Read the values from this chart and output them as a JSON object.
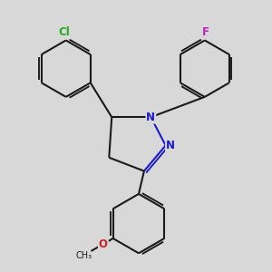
{
  "background_color": "#d8d8d8",
  "bond_color": "#1a1a1a",
  "nitrogen_color": "#1a1acc",
  "chlorine_color": "#22aa22",
  "fluorine_color": "#bb22bb",
  "oxygen_color": "#cc2222",
  "line_width": 1.5,
  "figsize": [
    3.0,
    3.0
  ],
  "dpi": 100,
  "xlim": [
    0,
    10
  ],
  "ylim": [
    0,
    10
  ]
}
